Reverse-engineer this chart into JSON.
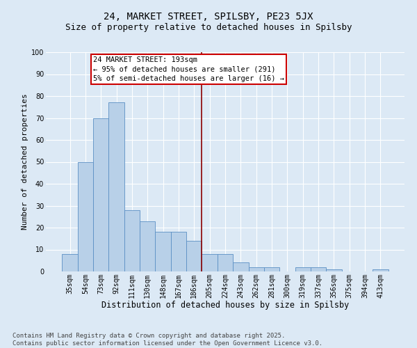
{
  "title1": "24, MARKET STREET, SPILSBY, PE23 5JX",
  "title2": "Size of property relative to detached houses in Spilsby",
  "xlabel": "Distribution of detached houses by size in Spilsby",
  "ylabel": "Number of detached properties",
  "categories": [
    "35sqm",
    "54sqm",
    "73sqm",
    "92sqm",
    "111sqm",
    "130sqm",
    "148sqm",
    "167sqm",
    "186sqm",
    "205sqm",
    "224sqm",
    "243sqm",
    "262sqm",
    "281sqm",
    "300sqm",
    "319sqm",
    "337sqm",
    "356sqm",
    "375sqm",
    "394sqm",
    "413sqm"
  ],
  "values": [
    8,
    50,
    70,
    77,
    28,
    23,
    18,
    18,
    14,
    8,
    8,
    4,
    2,
    2,
    0,
    2,
    2,
    1,
    0,
    0,
    1
  ],
  "bar_color": "#b8d0e8",
  "bar_edge_color": "#5a8fc4",
  "vline_x": 8.5,
  "vline_color": "#8b0000",
  "annotation_text": "24 MARKET STREET: 193sqm\n← 95% of detached houses are smaller (291)\n5% of semi-detached houses are larger (16) →",
  "annotation_box_color": "#ffffff",
  "annotation_box_edge_color": "#cc0000",
  "ylim": [
    0,
    100
  ],
  "yticks": [
    0,
    10,
    20,
    30,
    40,
    50,
    60,
    70,
    80,
    90,
    100
  ],
  "footer": "Contains HM Land Registry data © Crown copyright and database right 2025.\nContains public sector information licensed under the Open Government Licence v3.0.",
  "background_color": "#dce9f5",
  "plot_background_color": "#dce9f5",
  "grid_color": "#ffffff",
  "title1_fontsize": 10,
  "title2_fontsize": 9,
  "xlabel_fontsize": 8.5,
  "ylabel_fontsize": 8,
  "tick_fontsize": 7,
  "annotation_fontsize": 7.5,
  "footer_fontsize": 6.5
}
